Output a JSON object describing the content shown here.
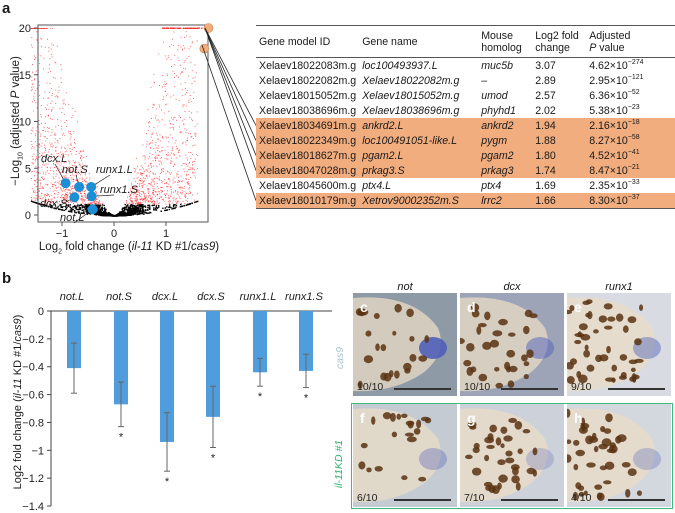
{
  "figure": {
    "panel_labels": {
      "a": "a",
      "b": "b",
      "c": "c",
      "d": "d",
      "e": "e",
      "f": "f",
      "g": "g",
      "h": "h"
    }
  },
  "volcano": {
    "ylabel_prefix": "−Log",
    "ylabel_sub": "10",
    "ylabel_rest": " (adjusted ",
    "ylabel_p": "P",
    "ylabel_end": " value)",
    "xlabel_prefix": "Log",
    "xlabel_sub": "2",
    "xlabel_mid": " fold change (",
    "xlabel_gene": "il-11",
    "xlabel_kd": " KD #1/",
    "xlabel_ctrl": "cas9",
    "xlabel_end": ")",
    "yticks": [
      "0",
      "5",
      "10",
      "15",
      "20"
    ],
    "xticks": [
      "−1",
      "0",
      "1"
    ],
    "colors": {
      "sig": "#ff2a2a",
      "nonsig": "#000000",
      "highlight": "#1b8fd6",
      "table_link": "#f2ad7e"
    }
  },
  "chart_data": [
    {
      "type": "scatter",
      "title": "",
      "xlabel": "Log2 fold change (il-11 KD #1/cas9)",
      "ylabel": "−Log10 (adjusted P value)",
      "xlim": [
        -1.45,
        1.85
      ],
      "ylim": [
        -0.5,
        20.5
      ],
      "xticks": [
        -1,
        0,
        1
      ],
      "yticks": [
        0,
        5,
        10,
        15,
        20
      ],
      "grid": false,
      "highlighted_points": [
        {
          "label": "dcx.L",
          "x": -0.93,
          "y": 3.4
        },
        {
          "label": "not.S",
          "x": -0.67,
          "y": 3.0
        },
        {
          "label": "runx1.L",
          "x": -0.44,
          "y": 3.0
        },
        {
          "label": "runx1.S",
          "x": -0.43,
          "y": 2.0
        },
        {
          "label": "dcx.S",
          "x": -0.76,
          "y": 1.9
        },
        {
          "label": "not.L",
          "x": -0.41,
          "y": 0.6
        }
      ],
      "table_linked_points": [
        {
          "x": 1.74,
          "y": 20.0
        },
        {
          "x": 1.66,
          "y": 17.8
        }
      ]
    },
    {
      "type": "bar",
      "title": "",
      "xlabel": "",
      "ylabel": "Log2 fold change (il-11 KD #1/cas9)",
      "categories": [
        "not.L",
        "not.S",
        "dcx.L",
        "dcx.S",
        "runx1.L",
        "runx1.S"
      ],
      "values": [
        -0.41,
        -0.67,
        -0.94,
        -0.76,
        -0.44,
        -0.43
      ],
      "error": [
        0.18,
        0.16,
        0.21,
        0.22,
        0.1,
        0.12
      ],
      "significant": [
        false,
        true,
        true,
        true,
        true,
        true
      ],
      "ylim": [
        -1.4,
        0
      ],
      "yticks": [
        0,
        -0.2,
        -0.4,
        -0.6,
        -0.8,
        -1,
        -1.2,
        -1.4
      ],
      "ytick_labels": [
        "0",
        "−0.2",
        "−0.4",
        "−0.6",
        "−0.8",
        "−1",
        "−1.2",
        "−1.4"
      ],
      "bar_color": "#4f9ddd",
      "sig_marker": "*"
    }
  ],
  "table": {
    "headers": [
      {
        "l1": "Gene model ID",
        "l2": ""
      },
      {
        "l1": "Gene name",
        "l2": ""
      },
      {
        "l1": "Mouse",
        "l2": "homolog"
      },
      {
        "l1": "Log2 fold",
        "l2": "change"
      },
      {
        "l1": "Adjusted",
        "l2_p": "P",
        "l2": " value"
      }
    ],
    "rows": [
      {
        "id": "Xelaev18022083m.g",
        "name": "loc100493937.L",
        "homolog": "muc5b",
        "lfc": "3.07",
        "p_mant": "4.62×10",
        "p_exp": "−274",
        "highlight": false
      },
      {
        "id": "Xelaev18022082m.g",
        "name": "Xelaev18022082m.g",
        "homolog": "–",
        "lfc": "2.89",
        "p_mant": "2.95×10",
        "p_exp": "−121",
        "highlight": false
      },
      {
        "id": "Xelaev18015052m.g",
        "name": "Xelaev18015052m.g",
        "homolog": "umod",
        "lfc": "2.57",
        "p_mant": "6.36×10",
        "p_exp": "−52",
        "highlight": false
      },
      {
        "id": "Xelaev18038696m.g",
        "name": "Xelaev18038696m.g",
        "homolog": "phyhd1",
        "lfc": "2.02",
        "p_mant": "5.38×10",
        "p_exp": "−23",
        "highlight": false
      },
      {
        "id": "Xelaev18034691m.g",
        "name": "ankrd2.L",
        "homolog": "ankrd2",
        "lfc": "1.94",
        "p_mant": "2.16×10",
        "p_exp": "−18",
        "highlight": true
      },
      {
        "id": "Xelaev18022349m.g",
        "name": "loc100491051-like.L",
        "homolog": "pygm",
        "lfc": "1.88",
        "p_mant": "8.27×10",
        "p_exp": "−58",
        "highlight": true
      },
      {
        "id": "Xelaev18018627m.g",
        "name": "pgam2.L",
        "homolog": "pgam2",
        "lfc": "1.80",
        "p_mant": "4.52×10",
        "p_exp": "−41",
        "highlight": true
      },
      {
        "id": "Xelaev18047028m.g",
        "name": "prkag3.S",
        "homolog": "prkag3",
        "lfc": "1.74",
        "p_mant": "8.47×10",
        "p_exp": "−21",
        "highlight": true
      },
      {
        "id": "Xelaev18045600m.g",
        "name": "ptx4.L",
        "homolog": "ptx4",
        "lfc": "1.69",
        "p_mant": "2.35×10",
        "p_exp": "−33",
        "highlight": false
      },
      {
        "id": "Xelaev18010179m.g",
        "name": "Xetrov90002352m.S",
        "homolog": "lrrc2",
        "lfc": "1.66",
        "p_mant": "8.30×10",
        "p_exp": "−37",
        "highlight": true
      }
    ]
  },
  "images": {
    "columns": [
      "not",
      "dcx",
      "runx1"
    ],
    "row_labels": {
      "control": "cas9",
      "kd": "il-11KD #1"
    },
    "row_label_colors": {
      "control": "#a8c3d4",
      "kd": "#2eb36a"
    },
    "kd_frame_color": "#3fb879",
    "panels": [
      {
        "letter": "c",
        "count": "10/10",
        "bg": "#8e9aa6"
      },
      {
        "letter": "d",
        "count": "10/10",
        "bg": "#9ea4b8"
      },
      {
        "letter": "e",
        "count": "9/10",
        "bg": "#d8dbe2"
      },
      {
        "letter": "f",
        "count": "6/10",
        "bg": "#c4cbd3"
      },
      {
        "letter": "g",
        "count": "7/10",
        "bg": "#cdd2da"
      },
      {
        "letter": "h",
        "count": "4/10",
        "bg": "#d3d7de"
      }
    ]
  }
}
